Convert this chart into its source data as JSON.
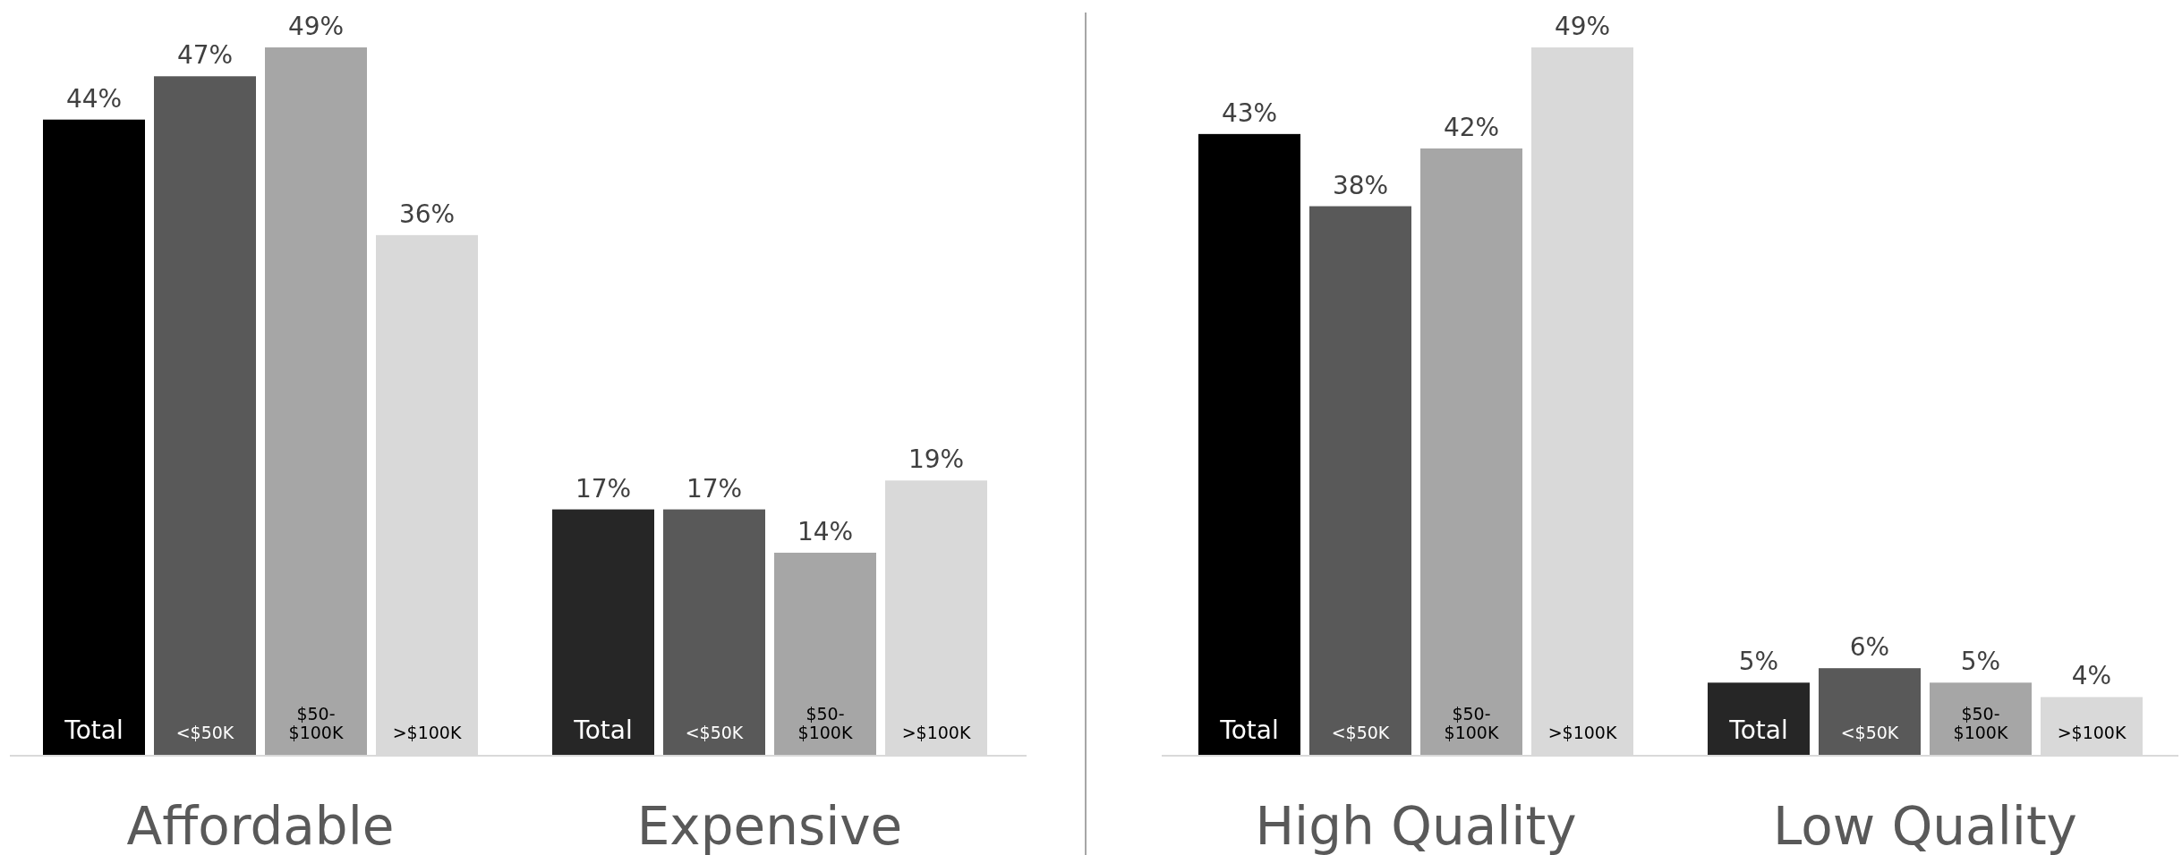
{
  "chart_data": [
    {
      "type": "bar",
      "categories": [
        "Affordable",
        "Expensive"
      ],
      "series": [
        {
          "name": "Total",
          "colors": [
            "#000000",
            "#262626"
          ],
          "values": [
            44,
            17
          ],
          "value_labels": [
            "44%",
            "17%"
          ]
        },
        {
          "name": "<$50K",
          "colors": [
            "#595959",
            "#595959"
          ],
          "values": [
            47,
            17
          ],
          "value_labels": [
            "47%",
            "17%"
          ]
        },
        {
          "name": "$50-$100K",
          "colors": [
            "#a6a6a6",
            "#a6a6a6"
          ],
          "values": [
            49,
            14
          ],
          "value_labels": [
            "49%",
            "14%"
          ]
        },
        {
          "name": ">$100K",
          "colors": [
            "#d9d9d9",
            "#d9d9d9"
          ],
          "values": [
            36,
            19
          ],
          "value_labels": [
            "36%",
            "19%"
          ]
        }
      ]
    },
    {
      "type": "bar",
      "categories": [
        "High Quality",
        "Low Quality"
      ],
      "series": [
        {
          "name": "Total",
          "colors": [
            "#000000",
            "#262626"
          ],
          "values": [
            43,
            5
          ],
          "value_labels": [
            "43%",
            "5%"
          ]
        },
        {
          "name": "<$50K",
          "colors": [
            "#595959",
            "#595959"
          ],
          "values": [
            38,
            6
          ],
          "value_labels": [
            "38%",
            "6%"
          ]
        },
        {
          "name": "$50-$100K",
          "colors": [
            "#a6a6a6",
            "#a6a6a6"
          ],
          "values": [
            42,
            5
          ],
          "value_labels": [
            "42%",
            "5%"
          ]
        },
        {
          "name": ">$100K",
          "colors": [
            "#d9d9d9",
            "#d9d9d9"
          ],
          "values": [
            49,
            4
          ],
          "value_labels": [
            "49%",
            "4%"
          ]
        }
      ]
    }
  ]
}
